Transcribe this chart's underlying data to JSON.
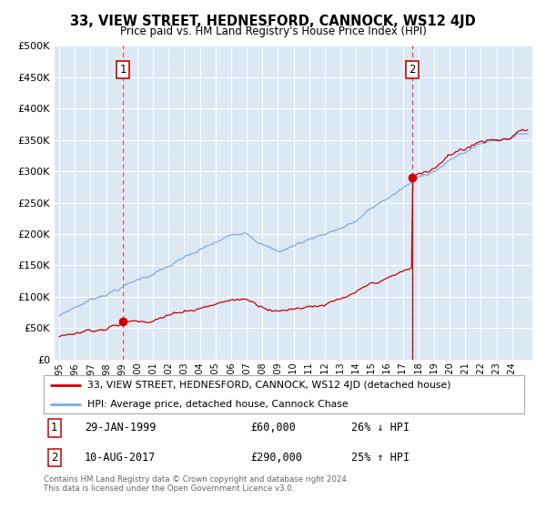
{
  "title": "33, VIEW STREET, HEDNESFORD, CANNOCK, WS12 4JD",
  "subtitle": "Price paid vs. HM Land Registry's House Price Index (HPI)",
  "ylim": [
    0,
    500000
  ],
  "yticks": [
    0,
    50000,
    100000,
    150000,
    200000,
    250000,
    300000,
    350000,
    400000,
    450000,
    500000
  ],
  "xlim": [
    1994.7,
    2025.3
  ],
  "background_color": "#dde8f5",
  "sale1_year": 1999.08,
  "sale1_price": 60000,
  "sale2_year": 2017.61,
  "sale2_price": 290000,
  "legend_line1": "33, VIEW STREET, HEDNESFORD, CANNOCK, WS12 4JD (detached house)",
  "legend_line2": "HPI: Average price, detached house, Cannock Chase",
  "footer": "Contains HM Land Registry data © Crown copyright and database right 2024.\nThis data is licensed under the Open Government Licence v3.0.",
  "red_color": "#cc0000",
  "blue_color": "#7aade0",
  "dashed_color": "#dd4444"
}
